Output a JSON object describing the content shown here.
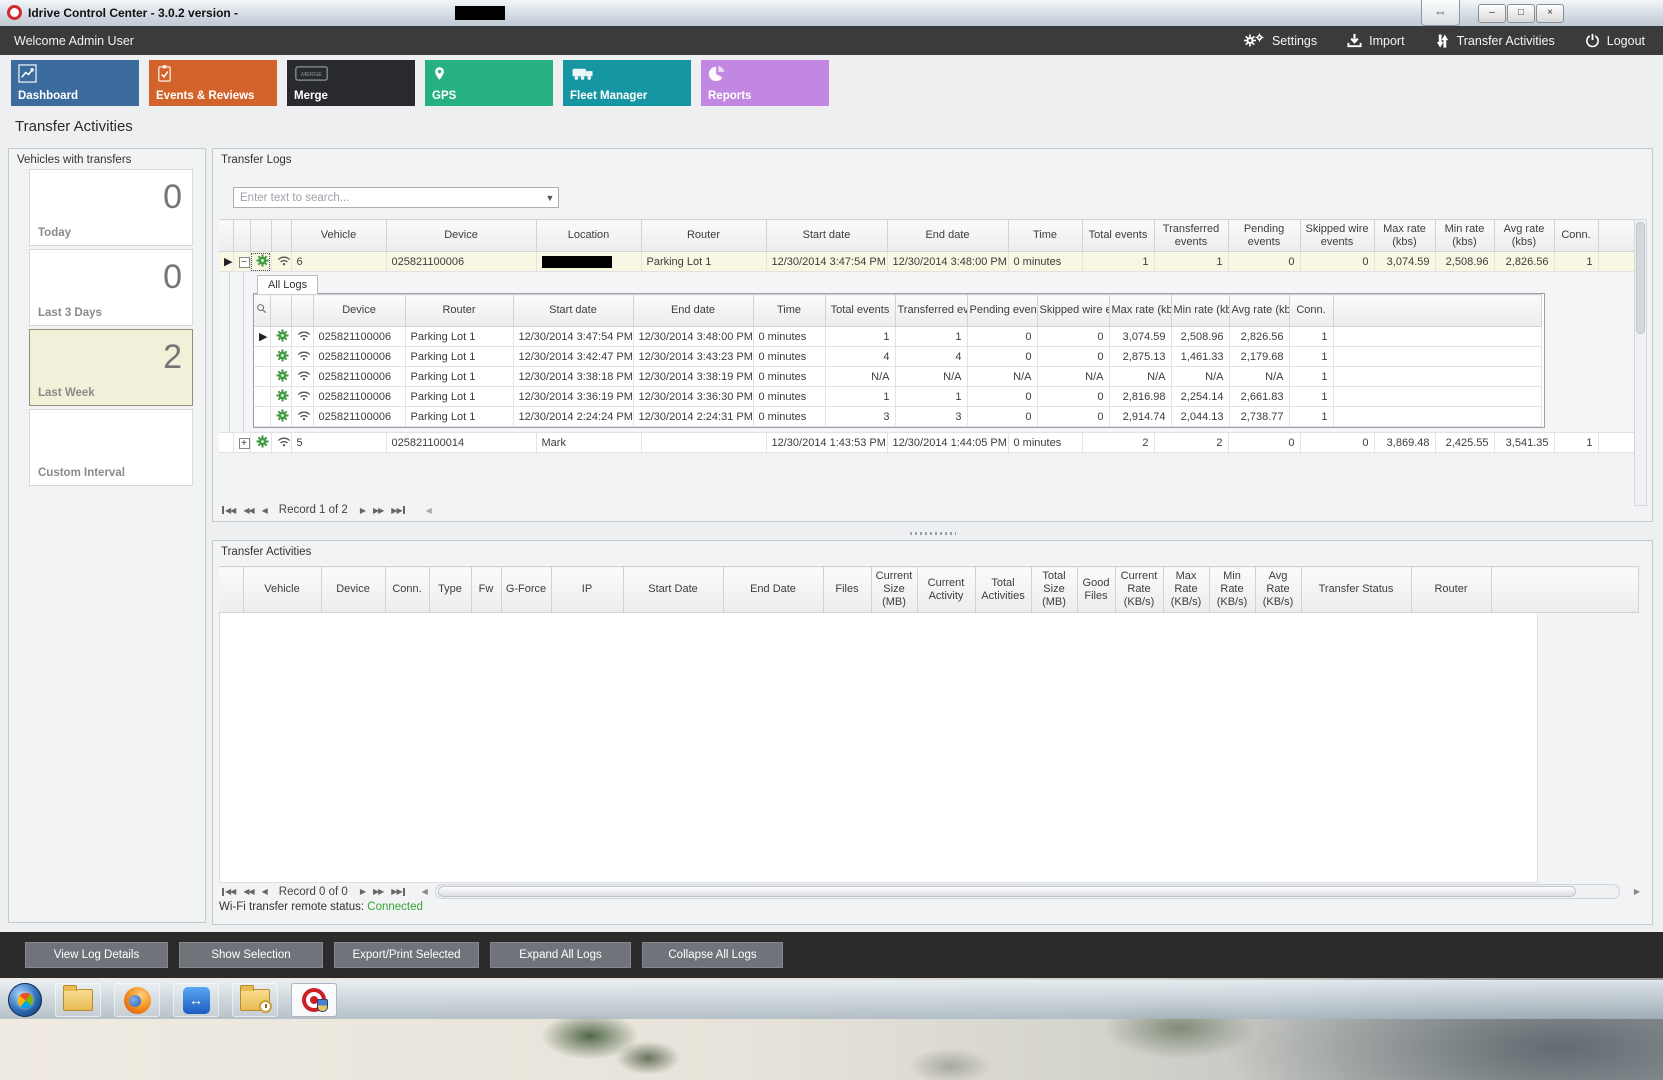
{
  "window": {
    "title": "Idrive Control Center - 3.0.2 version -",
    "title_redacted": true,
    "remote_grip_glyph": "⇔",
    "minimize_glyph": "–",
    "maximize_glyph": "□",
    "close_glyph": "×"
  },
  "header": {
    "welcome": "Welcome Admin User",
    "actions": [
      {
        "label": "Settings",
        "icon": "gears-icon"
      },
      {
        "label": "Import",
        "icon": "import-icon"
      },
      {
        "label": "Transfer Activities",
        "icon": "transfer-arrows-icon"
      },
      {
        "label": "Logout",
        "icon": "power-icon"
      }
    ]
  },
  "nav": {
    "tiles": [
      {
        "label": "Dashboard",
        "color": "#3c6c9d",
        "icon": "dashboard-chart-icon"
      },
      {
        "label": "Events & Reviews",
        "color": "#d2632b",
        "icon": "events-clipboard-icon"
      },
      {
        "label": "Merge",
        "color": "#282a2e",
        "icon": "merge-icon"
      },
      {
        "label": "GPS",
        "color": "#27b080",
        "icon": "gps-pin-icon"
      },
      {
        "label": "Fleet Manager",
        "color": "#1695a3",
        "icon": "fleet-trucks-icon"
      },
      {
        "label": "Reports",
        "color": "#c287e0",
        "icon": "reports-pie-icon"
      }
    ]
  },
  "page_title": "Transfer Activities",
  "sidebar": {
    "title": "Vehicles with transfers",
    "cards": [
      {
        "label": "Today",
        "value": "0",
        "selected": false
      },
      {
        "label": "Last 3 Days",
        "value": "0",
        "selected": false
      },
      {
        "label": "Last Week",
        "value": "2",
        "selected": true
      },
      {
        "label": "Custom Interval",
        "value": "",
        "selected": false
      }
    ]
  },
  "transfer_logs": {
    "title": "Transfer Logs",
    "search_placeholder": "Enter text to search...",
    "columns": [
      "Vehicle",
      "Device",
      "Location",
      "Router",
      "Start date",
      "End date",
      "Time",
      "Total events",
      "Transferred events",
      "Pending events",
      "Skipped wire events",
      "Max rate (kbs)",
      "Min rate (kbs)",
      "Avg rate (kbs)",
      "Conn."
    ],
    "rows": [
      {
        "vehicle": "6",
        "device": "025821100006",
        "location": "",
        "location_redacted": true,
        "router": "Parking Lot 1",
        "start": "12/30/2014 3:47:54 PM",
        "end": "12/30/2014 3:48:00 PM",
        "time": "0 minutes",
        "total": "1",
        "transferred": "1",
        "pending": "0",
        "skipped": "0",
        "max": "3,074.59",
        "min": "2,508.96",
        "avg": "2,826.56",
        "conn": "1",
        "expanded": true,
        "selected": true
      },
      {
        "vehicle": "5",
        "device": "025821100014",
        "location": "Mark",
        "location_redacted": false,
        "router": "",
        "start": "12/30/2014 1:43:53 PM",
        "end": "12/30/2014 1:44:05 PM",
        "time": "0 minutes",
        "total": "2",
        "transferred": "2",
        "pending": "0",
        "skipped": "0",
        "max": "3,869.48",
        "min": "2,425.55",
        "avg": "3,541.35",
        "conn": "1",
        "expanded": false,
        "selected": false
      }
    ],
    "detail": {
      "tab": "All Logs",
      "columns": [
        "Device",
        "Router",
        "Start date",
        "End date",
        "Time",
        "Total events",
        "Transferred events",
        "Pending events",
        "Skipped wire events",
        "Max rate (kbs)",
        "Min rate (kbs)",
        "Avg rate (kbs)",
        "Conn."
      ],
      "rows": [
        {
          "device": "025821100006",
          "router": "Parking Lot 1",
          "start": "12/30/2014 3:47:54 PM",
          "end": "12/30/2014 3:48:00 PM",
          "time": "0 minutes",
          "total": "1",
          "transferred": "1",
          "pending": "0",
          "skipped": "0",
          "max": "3,074.59",
          "min": "2,508.96",
          "avg": "2,826.56",
          "conn": "1"
        },
        {
          "device": "025821100006",
          "router": "Parking Lot 1",
          "start": "12/30/2014 3:42:47 PM",
          "end": "12/30/2014 3:43:23 PM",
          "time": "0 minutes",
          "total": "4",
          "transferred": "4",
          "pending": "0",
          "skipped": "0",
          "max": "2,875.13",
          "min": "1,461.33",
          "avg": "2,179.68",
          "conn": "1"
        },
        {
          "device": "025821100006",
          "router": "Parking Lot 1",
          "start": "12/30/2014 3:38:18 PM",
          "end": "12/30/2014 3:38:19 PM",
          "time": "0 minutes",
          "total": "N/A",
          "transferred": "N/A",
          "pending": "N/A",
          "skipped": "N/A",
          "max": "N/A",
          "min": "N/A",
          "avg": "N/A",
          "conn": "1"
        },
        {
          "device": "025821100006",
          "router": "Parking Lot 1",
          "start": "12/30/2014 3:36:19 PM",
          "end": "12/30/2014 3:36:30 PM",
          "time": "0 minutes",
          "total": "1",
          "transferred": "1",
          "pending": "0",
          "skipped": "0",
          "max": "2,816.98",
          "min": "2,254.14",
          "avg": "2,661.83",
          "conn": "1"
        },
        {
          "device": "025821100006",
          "router": "Parking Lot 1",
          "start": "12/30/2014 2:24:24 PM",
          "end": "12/30/2014 2:24:31 PM",
          "time": "0 minutes",
          "total": "3",
          "transferred": "3",
          "pending": "0",
          "skipped": "0",
          "max": "2,914.74",
          "min": "2,044.13",
          "avg": "2,738.77",
          "conn": "1"
        }
      ]
    },
    "record_status": "Record 1 of 2"
  },
  "transfer_activities": {
    "title": "Transfer Activities",
    "columns": [
      "Vehicle",
      "Device",
      "Conn.",
      "Type",
      "Fw",
      "G-Force",
      "IP",
      "Start Date",
      "End Date",
      "Files",
      "Current Size (MB)",
      "Current Activity",
      "Total Activities",
      "Total Size (MB)",
      "Good Files",
      "Current Rate (KB/s)",
      "Max Rate (KB/s)",
      "Min Rate (KB/s)",
      "Avg Rate (KB/s)",
      "Transfer Status",
      "Router"
    ],
    "record_status": "Record 0 of 0",
    "wifi_label": "Wi-Fi transfer remote status:",
    "wifi_value": "Connected",
    "wifi_color": "#3aa33a"
  },
  "footer": {
    "buttons": [
      "View Log Details",
      "Show Selection",
      "Export/Print Selected",
      "Expand All Logs",
      "Collapse All Logs"
    ]
  },
  "taskbar": {
    "icons": [
      "windows-start-icon",
      "file-explorer-icon",
      "firefox-icon",
      "teamviewer-icon",
      "mail-clock-icon",
      "idrive-app-icon"
    ]
  },
  "colors": {
    "selected_row": "#f7f7e3",
    "menubar": "#3b3b3c",
    "footer": "#2b2b2b",
    "connected_green": "#3aa33a"
  }
}
